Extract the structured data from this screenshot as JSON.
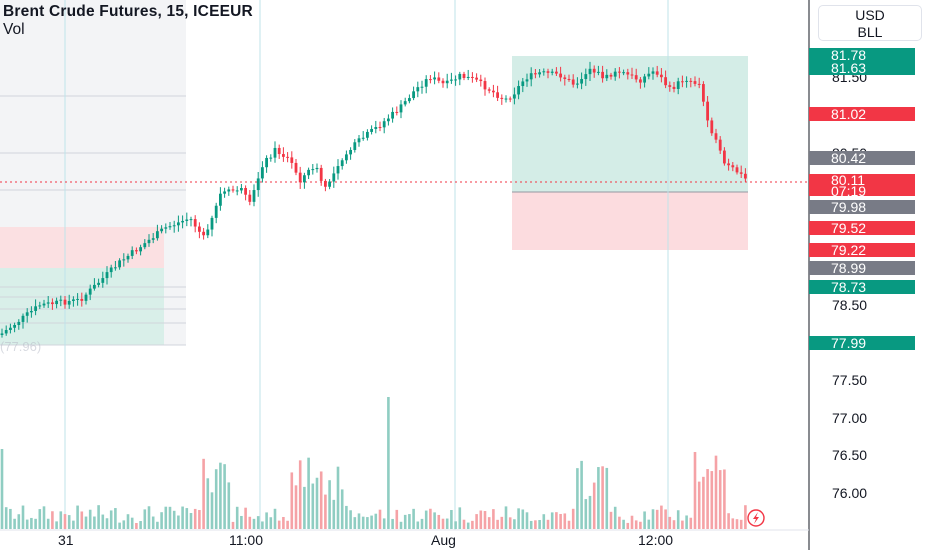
{
  "header": {
    "title": "Brent Crude Futures, 15, ICEEUR",
    "volume_label": "Vol"
  },
  "currency": {
    "code": "USD",
    "unit": "BLL"
  },
  "price_axis": {
    "ticks": [
      "81.50",
      "80.50",
      "78.50",
      "77.50",
      "77.00",
      "76.50",
      "76.00"
    ]
  },
  "price_tags": [
    {
      "value": "81.78",
      "color": "#089981"
    },
    {
      "value": "81.63",
      "color": "#089981"
    },
    {
      "value": "81.02",
      "color": "#f23645"
    },
    {
      "value": "80.42",
      "color": "#787b86"
    },
    {
      "value": "79.98",
      "color": "#787b86"
    },
    {
      "value": "79.52",
      "color": "#f23645"
    },
    {
      "value": "79.22",
      "color": "#f23645"
    },
    {
      "value": "78.99",
      "color": "#787b86"
    },
    {
      "value": "78.73",
      "color": "#089981"
    },
    {
      "value": "77.99",
      "color": "#089981"
    }
  ],
  "current_price": {
    "value": "80.11",
    "countdown": "07:19",
    "color": "#f23645"
  },
  "time_axis": {
    "labels": [
      "31",
      "11:00",
      "Aug",
      "12:00"
    ]
  },
  "ghost_label": "(77.96)",
  "colors": {
    "up": "#089981",
    "down": "#f23645",
    "profit_zone": "#d4ede7",
    "loss_zone": "#fcdcdf",
    "vol_up": "#8fcdc2",
    "vol_down": "#f5a2a6"
  },
  "icons": {
    "live_badge": "lightning-icon"
  }
}
